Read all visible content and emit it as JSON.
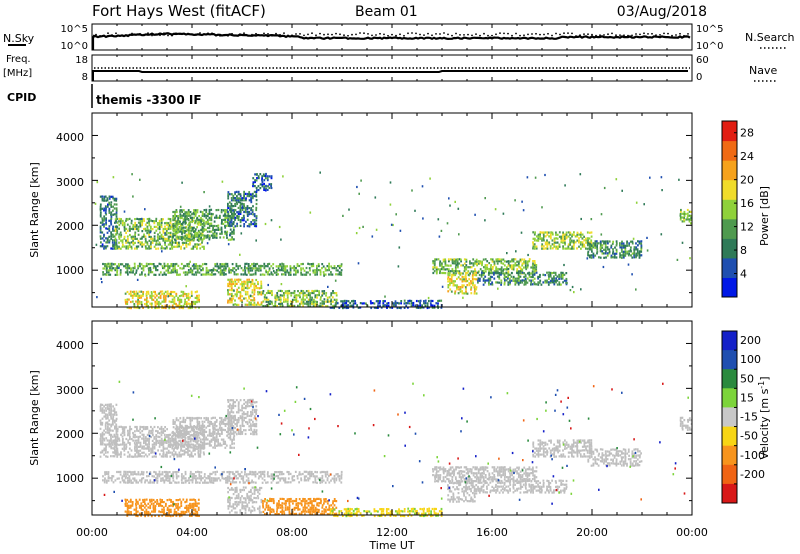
{
  "header": {
    "title": "Fort Hays West (fitACF)",
    "beam": "Beam 01",
    "date": "03/Aug/2018"
  },
  "strip_panels": {
    "nsky": {
      "left_label": "N.Sky",
      "left_ticks": [
        "10^5",
        "10^0"
      ],
      "right_ticks": [
        "10^5",
        "10^0"
      ],
      "right_label": "N.Search"
    },
    "freq": {
      "left_label_lines": [
        "Freq.",
        "[MHz]"
      ],
      "left_ticks": [
        "18",
        "8"
      ],
      "right_ticks": [
        "60",
        "0"
      ],
      "right_label": "Nave"
    },
    "cpid": {
      "left_label": "CPID",
      "text": "themis -3300 IF"
    }
  },
  "colors": {
    "power_scale": [
      "#0018e6",
      "#1f4fb0",
      "#2f7a58",
      "#4f9a4f",
      "#8fd13a",
      "#f0dc2a",
      "#f6a21c",
      "#f06a14",
      "#e11d12"
    ],
    "velocity_scale": [
      "#1420c8",
      "#1f4fb0",
      "#2a8a3e",
      "#7cd43a",
      "#c8c8c8",
      "#f7d515",
      "#f7941d",
      "#f06414",
      "#d81818"
    ],
    "ground_scatter": "#bfbfbf"
  },
  "chart_data": [
    {
      "type": "heatmap",
      "name": "power",
      "ylabel": "Slant Range [km]",
      "yticks": [
        "1000",
        "2000",
        "3000",
        "4000"
      ],
      "ylim": [
        180,
        4500
      ],
      "xlim": [
        0,
        24
      ],
      "xticks": [
        "00:00",
        "04:00",
        "08:00",
        "12:00",
        "16:00",
        "20:00",
        "00:00"
      ],
      "colorbar": {
        "label": "Power [dB]",
        "range": [
          0,
          30
        ],
        "ticks": [
          "4",
          "8",
          "12",
          "16",
          "20",
          "24",
          "28"
        ]
      },
      "regions": [
        {
          "t": [
            0.3,
            1.0
          ],
          "r": [
            1500,
            2700
          ],
          "p": 8
        },
        {
          "t": [
            0.9,
            4.5
          ],
          "r": [
            1500,
            2200
          ],
          "p": 14
        },
        {
          "t": [
            3.2,
            5.7
          ],
          "r": [
            1700,
            2400
          ],
          "p": 12
        },
        {
          "t": [
            5.4,
            6.6
          ],
          "r": [
            2000,
            2800
          ],
          "p": 8
        },
        {
          "t": [
            6.4,
            7.2
          ],
          "r": [
            2800,
            3200
          ],
          "p": 6
        },
        {
          "t": [
            0.4,
            10.0
          ],
          "r": [
            920,
            1200
          ],
          "p": 12
        },
        {
          "t": [
            1.3,
            4.3
          ],
          "r": [
            180,
            580
          ],
          "p": 18
        },
        {
          "t": [
            5.4,
            6.8
          ],
          "r": [
            250,
            850
          ],
          "p": 18
        },
        {
          "t": [
            6.8,
            9.8
          ],
          "r": [
            220,
            600
          ],
          "p": 14
        },
        {
          "t": [
            9.5,
            14.0
          ],
          "r": [
            180,
            380
          ],
          "p": 6
        },
        {
          "t": [
            13.6,
            17.8
          ],
          "r": [
            950,
            1300
          ],
          "p": 14
        },
        {
          "t": [
            14.2,
            15.4
          ],
          "r": [
            500,
            1000
          ],
          "p": 18
        },
        {
          "t": [
            15.4,
            19.0
          ],
          "r": [
            700,
            1000
          ],
          "p": 10
        },
        {
          "t": [
            17.6,
            20.0
          ],
          "r": [
            1500,
            1900
          ],
          "p": 15
        },
        {
          "t": [
            19.8,
            22.0
          ],
          "r": [
            1300,
            1700
          ],
          "p": 10
        },
        {
          "t": [
            23.5,
            24.0
          ],
          "r": [
            2100,
            2400
          ],
          "p": 14
        }
      ]
    },
    {
      "type": "heatmap",
      "name": "velocity",
      "ylabel": "Slant Range [km]",
      "yticks": [
        "1000",
        "2000",
        "3000",
        "4000"
      ],
      "ylim": [
        180,
        4500
      ],
      "xlim": [
        0,
        24
      ],
      "xticks": [
        "00:00",
        "04:00",
        "08:00",
        "12:00",
        "16:00",
        "20:00",
        "00:00"
      ],
      "xlabel": "Time UT",
      "colorbar": {
        "label": "Velocity [m s^-1]",
        "ticks": [
          "200",
          "100",
          "50",
          "15",
          "-15",
          "-50",
          "-100",
          "-200"
        ]
      },
      "regions": [
        {
          "t": [
            0.3,
            1.0
          ],
          "r": [
            1500,
            2700
          ],
          "v": 0
        },
        {
          "t": [
            0.9,
            4.5
          ],
          "r": [
            1500,
            2200
          ],
          "v": 0
        },
        {
          "t": [
            3.2,
            5.7
          ],
          "r": [
            1700,
            2400
          ],
          "v": 0
        },
        {
          "t": [
            5.4,
            6.6
          ],
          "r": [
            2000,
            2800
          ],
          "v": 0
        },
        {
          "t": [
            0.4,
            10.0
          ],
          "r": [
            920,
            1200
          ],
          "v": 0
        },
        {
          "t": [
            1.3,
            4.3
          ],
          "r": [
            180,
            580
          ],
          "v": -60
        },
        {
          "t": [
            5.4,
            6.8
          ],
          "r": [
            250,
            850
          ],
          "v": 0
        },
        {
          "t": [
            6.8,
            9.8
          ],
          "r": [
            220,
            600
          ],
          "v": -45
        },
        {
          "t": [
            9.5,
            14.0
          ],
          "r": [
            180,
            380
          ],
          "v": -20
        },
        {
          "t": [
            13.6,
            17.8
          ],
          "r": [
            950,
            1300
          ],
          "v": 0
        },
        {
          "t": [
            14.2,
            15.4
          ],
          "r": [
            500,
            1000
          ],
          "v": 0
        },
        {
          "t": [
            15.4,
            19.0
          ],
          "r": [
            700,
            1000
          ],
          "v": 0
        },
        {
          "t": [
            17.6,
            20.0
          ],
          "r": [
            1500,
            1900
          ],
          "v": 0
        },
        {
          "t": [
            19.8,
            22.0
          ],
          "r": [
            1300,
            1700
          ],
          "v": 0
        },
        {
          "t": [
            23.5,
            24.0
          ],
          "r": [
            2100,
            2400
          ],
          "v": 0
        }
      ]
    }
  ]
}
